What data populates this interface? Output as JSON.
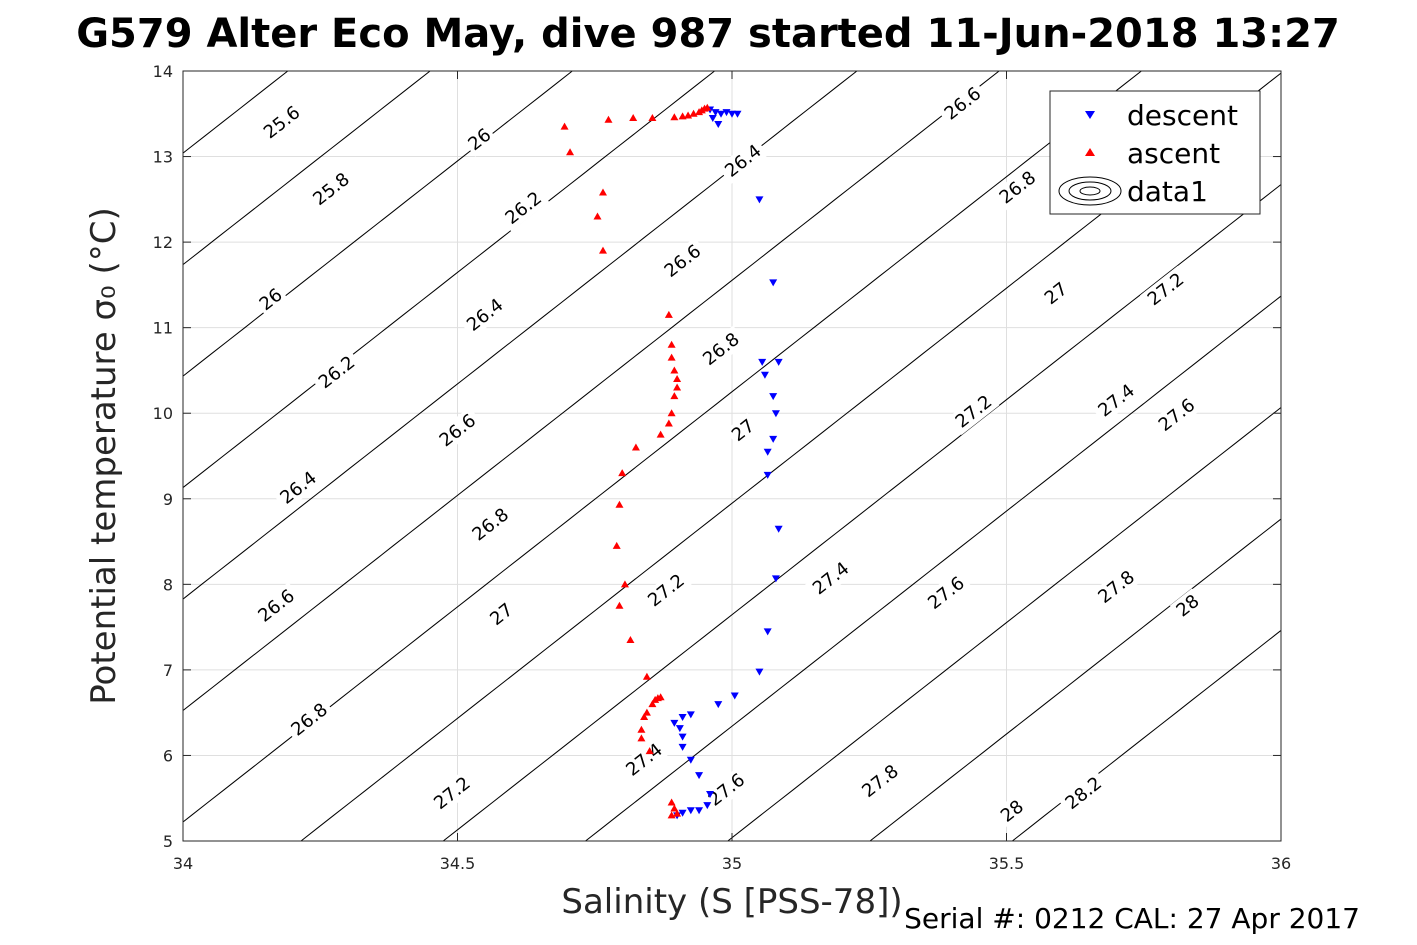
{
  "chart_data": {
    "type": "scatter",
    "title": "G579 Alter Eco May, dive 987 started 11-Jun-2018 13:27",
    "xlabel": "Salinity (S [PSS-78])",
    "ylabel": "Potential temperature σ₀ (°C)",
    "xlim": [
      34,
      36
    ],
    "ylim": [
      5,
      14
    ],
    "x_ticks": [
      "34",
      "34.5",
      "35",
      "35.5",
      "36"
    ],
    "y_ticks": [
      "5",
      "6",
      "7",
      "8",
      "9",
      "10",
      "11",
      "12",
      "13",
      "14"
    ],
    "grid": true,
    "legend_position": "top-right",
    "legend": [
      "descent",
      "ascent",
      "data1"
    ],
    "footer": "Serial #: 0212  CAL: 27 Apr 2017",
    "series": [
      {
        "name": "descent",
        "marker": "triangle-down",
        "color": "#0000ff",
        "points": [
          [
            34.96,
            13.55
          ],
          [
            34.97,
            13.52
          ],
          [
            34.98,
            13.5
          ],
          [
            34.99,
            13.52
          ],
          [
            35.0,
            13.5
          ],
          [
            35.01,
            13.5
          ],
          [
            34.965,
            13.45
          ],
          [
            34.975,
            13.38
          ],
          [
            35.05,
            12.5
          ],
          [
            35.075,
            11.53
          ],
          [
            35.055,
            10.6
          ],
          [
            35.085,
            10.6
          ],
          [
            35.06,
            10.45
          ],
          [
            35.075,
            10.2
          ],
          [
            35.08,
            10.0
          ],
          [
            35.075,
            9.7
          ],
          [
            35.065,
            9.55
          ],
          [
            35.065,
            9.28
          ],
          [
            35.085,
            8.65
          ],
          [
            35.08,
            8.07
          ],
          [
            35.065,
            7.45
          ],
          [
            35.05,
            6.98
          ],
          [
            35.005,
            6.7
          ],
          [
            34.975,
            6.6
          ],
          [
            34.91,
            6.45
          ],
          [
            34.925,
            6.48
          ],
          [
            34.895,
            6.38
          ],
          [
            34.905,
            6.32
          ],
          [
            34.91,
            6.22
          ],
          [
            34.91,
            6.1
          ],
          [
            34.925,
            5.95
          ],
          [
            34.94,
            5.77
          ],
          [
            34.96,
            5.55
          ],
          [
            34.955,
            5.42
          ],
          [
            34.94,
            5.36
          ],
          [
            34.925,
            5.36
          ],
          [
            34.91,
            5.33
          ],
          [
            34.9,
            5.3
          ]
        ]
      },
      {
        "name": "ascent",
        "marker": "triangle-up",
        "color": "#ff0000",
        "points": [
          [
            34.695,
            13.35
          ],
          [
            34.705,
            13.05
          ],
          [
            34.775,
            13.43
          ],
          [
            34.82,
            13.45
          ],
          [
            34.855,
            13.45
          ],
          [
            34.895,
            13.46
          ],
          [
            34.91,
            13.47
          ],
          [
            34.92,
            13.48
          ],
          [
            34.93,
            13.5
          ],
          [
            34.94,
            13.52
          ],
          [
            34.945,
            13.54
          ],
          [
            34.95,
            13.56
          ],
          [
            34.955,
            13.57
          ],
          [
            34.765,
            12.58
          ],
          [
            34.755,
            12.3
          ],
          [
            34.765,
            11.9
          ],
          [
            34.885,
            11.15
          ],
          [
            34.89,
            10.8
          ],
          [
            34.89,
            10.65
          ],
          [
            34.895,
            10.5
          ],
          [
            34.9,
            10.4
          ],
          [
            34.9,
            10.3
          ],
          [
            34.895,
            10.2
          ],
          [
            34.89,
            10.0
          ],
          [
            34.885,
            9.88
          ],
          [
            34.87,
            9.75
          ],
          [
            34.825,
            9.6
          ],
          [
            34.8,
            9.3
          ],
          [
            34.795,
            8.93
          ],
          [
            34.79,
            8.45
          ],
          [
            34.805,
            8.0
          ],
          [
            34.795,
            7.75
          ],
          [
            34.815,
            7.35
          ],
          [
            34.845,
            6.92
          ],
          [
            34.855,
            6.6
          ],
          [
            34.86,
            6.65
          ],
          [
            34.865,
            6.67
          ],
          [
            34.87,
            6.68
          ],
          [
            34.845,
            6.5
          ],
          [
            34.84,
            6.45
          ],
          [
            34.835,
            6.3
          ],
          [
            34.835,
            6.2
          ],
          [
            34.85,
            6.05
          ],
          [
            34.89,
            5.45
          ],
          [
            34.895,
            5.38
          ],
          [
            34.9,
            5.32
          ],
          [
            34.89,
            5.3
          ]
        ]
      }
    ],
    "contour_levels": [
      "25.6",
      "25.8",
      "26",
      "26.2",
      "26.4",
      "26.6",
      "26.8",
      "27",
      "27.2",
      "27.4",
      "27.6",
      "27.8",
      "28",
      "28.2"
    ],
    "contour_labels": [
      {
        "text": "25.6",
        "x": 34.18,
        "y": 13.4
      },
      {
        "text": "25.8",
        "x": 34.27,
        "y": 12.62
      },
      {
        "text": "26",
        "x": 34.16,
        "y": 11.33
      },
      {
        "text": "26.2",
        "x": 34.28,
        "y": 10.48
      },
      {
        "text": "26.4",
        "x": 34.21,
        "y": 9.13
      },
      {
        "text": "26.6",
        "x": 34.17,
        "y": 7.75
      },
      {
        "text": "26.8",
        "x": 34.23,
        "y": 6.42
      },
      {
        "text": "27.2",
        "x": 34.49,
        "y": 5.56
      },
      {
        "text": "26",
        "x": 34.54,
        "y": 13.2
      },
      {
        "text": "26.2",
        "x": 34.62,
        "y": 12.4
      },
      {
        "text": "26.4",
        "x": 34.55,
        "y": 11.15
      },
      {
        "text": "26.6",
        "x": 34.5,
        "y": 9.8
      },
      {
        "text": "26.8",
        "x": 34.56,
        "y": 8.7
      },
      {
        "text": "27",
        "x": 34.58,
        "y": 7.65
      },
      {
        "text": "27.2",
        "x": 34.88,
        "y": 7.93
      },
      {
        "text": "27.4",
        "x": 34.84,
        "y": 5.95
      },
      {
        "text": "26.4",
        "x": 35.02,
        "y": 12.95
      },
      {
        "text": "26.6",
        "x": 34.91,
        "y": 11.78
      },
      {
        "text": "26.8",
        "x": 34.98,
        "y": 10.75
      },
      {
        "text": "27",
        "x": 35.02,
        "y": 9.8
      },
      {
        "text": "27.6",
        "x": 34.99,
        "y": 5.6
      },
      {
        "text": "27.4",
        "x": 35.18,
        "y": 8.07
      },
      {
        "text": "27.2",
        "x": 35.44,
        "y": 10.02
      },
      {
        "text": "26.6",
        "x": 35.42,
        "y": 13.62
      },
      {
        "text": "26.8",
        "x": 35.52,
        "y": 12.64
      },
      {
        "text": "27",
        "x": 35.59,
        "y": 11.4
      },
      {
        "text": "27.2",
        "x": 35.79,
        "y": 11.45
      },
      {
        "text": "27.4",
        "x": 35.7,
        "y": 10.15
      },
      {
        "text": "27.6",
        "x": 35.81,
        "y": 9.98
      },
      {
        "text": "27.6",
        "x": 35.39,
        "y": 7.9
      },
      {
        "text": "27.8",
        "x": 35.7,
        "y": 7.97
      },
      {
        "text": "28",
        "x": 35.83,
        "y": 7.75
      },
      {
        "text": "27.8",
        "x": 35.27,
        "y": 5.7
      },
      {
        "text": "28",
        "x": 35.51,
        "y": 5.35
      },
      {
        "text": "28.2",
        "x": 35.64,
        "y": 5.56
      }
    ]
  }
}
